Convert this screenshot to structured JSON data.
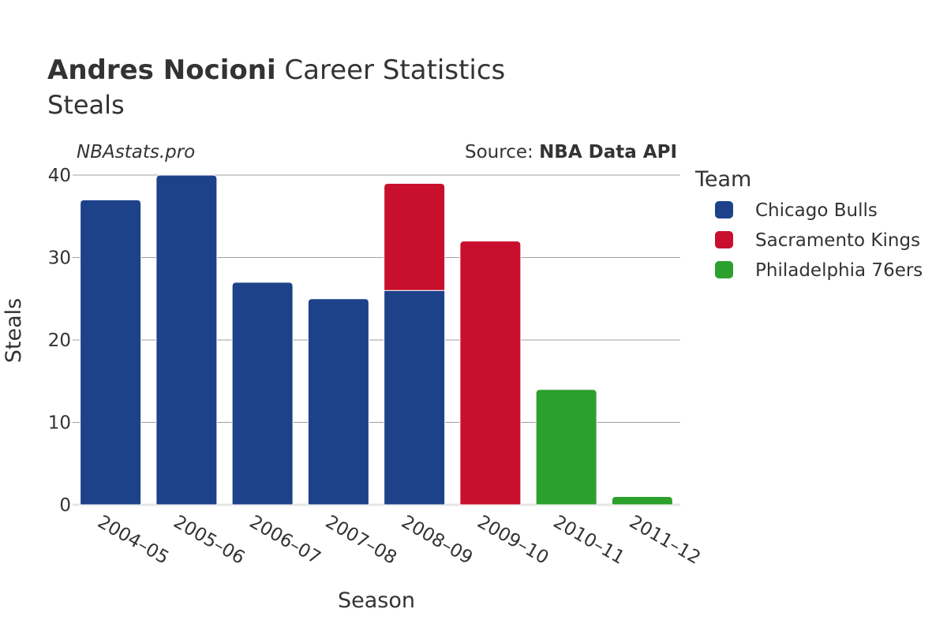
{
  "header": {
    "title_bold": "Andres Nocioni",
    "title_rest": " Career Statistics",
    "subtitle": "Steals",
    "watermark": "NBAstats.pro",
    "source_prefix": "Source: ",
    "source_name": "NBA Data API"
  },
  "legend": {
    "title": "Team"
  },
  "chart_data": {
    "type": "bar",
    "stacked": true,
    "xlabel": "Season",
    "ylabel": "Steals",
    "ylim": [
      0,
      40
    ],
    "yticks": [
      0,
      10,
      20,
      30,
      40
    ],
    "grid": true,
    "legend_position": "right",
    "categories": [
      "2004–05",
      "2005–06",
      "2006–07",
      "2007–08",
      "2008–09",
      "2009–10",
      "2010–11",
      "2011–12"
    ],
    "series": [
      {
        "name": "Chicago Bulls",
        "color": "#1d428a",
        "values": [
          37,
          40,
          27,
          25,
          26,
          0,
          0,
          0
        ]
      },
      {
        "name": "Sacramento Kings",
        "color": "#c8102e",
        "values": [
          0,
          0,
          0,
          0,
          13,
          32,
          0,
          0
        ]
      },
      {
        "name": "Philadelphia 76ers",
        "color": "#2ca02c",
        "values": [
          0,
          0,
          0,
          0,
          0,
          0,
          14,
          1
        ]
      }
    ]
  }
}
